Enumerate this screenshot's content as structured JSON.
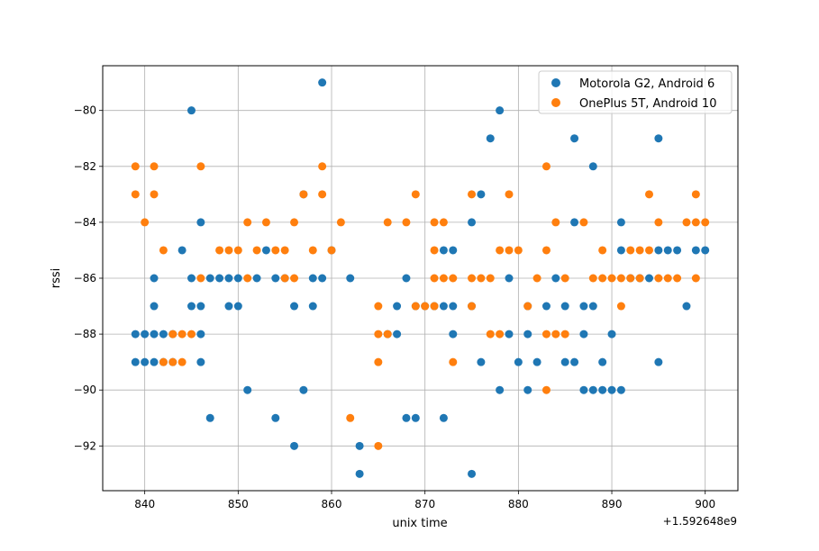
{
  "chart_data": {
    "type": "scatter",
    "title": "",
    "xlabel": "unix time",
    "ylabel": "rssi",
    "x_offset_label": "+1.592648e9",
    "xlim": [
      835.5,
      903.5
    ],
    "ylim": [
      -93.6,
      -78.4
    ],
    "xticks": [
      840,
      850,
      860,
      870,
      880,
      890,
      900
    ],
    "yticks": [
      -92,
      -90,
      -88,
      -86,
      -84,
      -82,
      -80
    ],
    "ytick_labels": [
      "−92",
      "−90",
      "−88",
      "−86",
      "−84",
      "−82",
      "−80"
    ],
    "grid": true,
    "legend_position": "top-right",
    "series": [
      {
        "name": "Motorola G2, Android 6",
        "color": "#1f77b4",
        "points": [
          [
            839,
            -88
          ],
          [
            839,
            -89
          ],
          [
            840,
            -88
          ],
          [
            840,
            -89
          ],
          [
            841,
            -86
          ],
          [
            841,
            -87
          ],
          [
            841,
            -88
          ],
          [
            841,
            -89
          ],
          [
            842,
            -88
          ],
          [
            842,
            -89
          ],
          [
            843,
            -88
          ],
          [
            843,
            -89
          ],
          [
            844,
            -85
          ],
          [
            845,
            -80
          ],
          [
            845,
            -86
          ],
          [
            845,
            -87
          ],
          [
            846,
            -84
          ],
          [
            846,
            -87
          ],
          [
            846,
            -88
          ],
          [
            846,
            -89
          ],
          [
            847,
            -86
          ],
          [
            847,
            -91
          ],
          [
            848,
            -86
          ],
          [
            849,
            -86
          ],
          [
            849,
            -87
          ],
          [
            850,
            -86
          ],
          [
            850,
            -87
          ],
          [
            851,
            -90
          ],
          [
            852,
            -86
          ],
          [
            853,
            -85
          ],
          [
            854,
            -86
          ],
          [
            854,
            -91
          ],
          [
            855,
            -86
          ],
          [
            856,
            -87
          ],
          [
            856,
            -92
          ],
          [
            857,
            -83
          ],
          [
            857,
            -90
          ],
          [
            858,
            -86
          ],
          [
            858,
            -87
          ],
          [
            859,
            -79
          ],
          [
            859,
            -86
          ],
          [
            860,
            -85
          ],
          [
            862,
            -86
          ],
          [
            863,
            -92
          ],
          [
            863,
            -93
          ],
          [
            866,
            -88
          ],
          [
            867,
            -87
          ],
          [
            867,
            -88
          ],
          [
            868,
            -86
          ],
          [
            868,
            -91
          ],
          [
            869,
            -87
          ],
          [
            869,
            -91
          ],
          [
            870,
            -87
          ],
          [
            871,
            -87
          ],
          [
            872,
            -85
          ],
          [
            872,
            -87
          ],
          [
            872,
            -91
          ],
          [
            873,
            -85
          ],
          [
            873,
            -87
          ],
          [
            873,
            -88
          ],
          [
            875,
            -84
          ],
          [
            875,
            -87
          ],
          [
            875,
            -93
          ],
          [
            876,
            -83
          ],
          [
            876,
            -89
          ],
          [
            877,
            -81
          ],
          [
            878,
            -80
          ],
          [
            878,
            -90
          ],
          [
            879,
            -86
          ],
          [
            879,
            -88
          ],
          [
            880,
            -89
          ],
          [
            881,
            -87
          ],
          [
            881,
            -88
          ],
          [
            881,
            -90
          ],
          [
            882,
            -89
          ],
          [
            883,
            -87
          ],
          [
            884,
            -86
          ],
          [
            885,
            -87
          ],
          [
            885,
            -89
          ],
          [
            886,
            -81
          ],
          [
            886,
            -84
          ],
          [
            886,
            -89
          ],
          [
            887,
            -87
          ],
          [
            887,
            -88
          ],
          [
            887,
            -90
          ],
          [
            888,
            -82
          ],
          [
            888,
            -87
          ],
          [
            888,
            -90
          ],
          [
            889,
            -89
          ],
          [
            889,
            -90
          ],
          [
            890,
            -88
          ],
          [
            890,
            -90
          ],
          [
            891,
            -84
          ],
          [
            891,
            -85
          ],
          [
            891,
            -90
          ],
          [
            892,
            -86
          ],
          [
            893,
            -86
          ],
          [
            894,
            -86
          ],
          [
            895,
            -81
          ],
          [
            895,
            -85
          ],
          [
            895,
            -89
          ],
          [
            896,
            -85
          ],
          [
            897,
            -85
          ],
          [
            898,
            -87
          ],
          [
            899,
            -85
          ],
          [
            900,
            -85
          ]
        ]
      },
      {
        "name": "OnePlus 5T, Android 10",
        "color": "#ff7f0e",
        "points": [
          [
            839,
            -82
          ],
          [
            839,
            -83
          ],
          [
            840,
            -84
          ],
          [
            841,
            -82
          ],
          [
            841,
            -83
          ],
          [
            842,
            -85
          ],
          [
            842,
            -89
          ],
          [
            843,
            -88
          ],
          [
            843,
            -89
          ],
          [
            844,
            -88
          ],
          [
            844,
            -89
          ],
          [
            845,
            -88
          ],
          [
            846,
            -82
          ],
          [
            846,
            -86
          ],
          [
            848,
            -85
          ],
          [
            849,
            -85
          ],
          [
            850,
            -85
          ],
          [
            851,
            -84
          ],
          [
            851,
            -86
          ],
          [
            852,
            -85
          ],
          [
            853,
            -84
          ],
          [
            854,
            -85
          ],
          [
            855,
            -85
          ],
          [
            855,
            -86
          ],
          [
            856,
            -84
          ],
          [
            856,
            -86
          ],
          [
            857,
            -83
          ],
          [
            858,
            -85
          ],
          [
            859,
            -82
          ],
          [
            859,
            -83
          ],
          [
            860,
            -85
          ],
          [
            861,
            -84
          ],
          [
            862,
            -91
          ],
          [
            865,
            -87
          ],
          [
            865,
            -88
          ],
          [
            865,
            -89
          ],
          [
            865,
            -92
          ],
          [
            866,
            -84
          ],
          [
            866,
            -88
          ],
          [
            868,
            -84
          ],
          [
            869,
            -83
          ],
          [
            869,
            -87
          ],
          [
            870,
            -87
          ],
          [
            871,
            -84
          ],
          [
            871,
            -85
          ],
          [
            871,
            -86
          ],
          [
            871,
            -87
          ],
          [
            872,
            -84
          ],
          [
            872,
            -86
          ],
          [
            873,
            -86
          ],
          [
            873,
            -89
          ],
          [
            875,
            -83
          ],
          [
            875,
            -86
          ],
          [
            875,
            -87
          ],
          [
            876,
            -86
          ],
          [
            877,
            -86
          ],
          [
            877,
            -88
          ],
          [
            878,
            -85
          ],
          [
            878,
            -88
          ],
          [
            879,
            -83
          ],
          [
            879,
            -85
          ],
          [
            880,
            -85
          ],
          [
            881,
            -87
          ],
          [
            882,
            -86
          ],
          [
            883,
            -82
          ],
          [
            883,
            -85
          ],
          [
            883,
            -88
          ],
          [
            883,
            -90
          ],
          [
            884,
            -84
          ],
          [
            884,
            -88
          ],
          [
            885,
            -86
          ],
          [
            885,
            -88
          ],
          [
            887,
            -84
          ],
          [
            888,
            -86
          ],
          [
            889,
            -85
          ],
          [
            889,
            -86
          ],
          [
            890,
            -86
          ],
          [
            891,
            -86
          ],
          [
            891,
            -87
          ],
          [
            892,
            -85
          ],
          [
            892,
            -86
          ],
          [
            893,
            -85
          ],
          [
            893,
            -86
          ],
          [
            894,
            -83
          ],
          [
            894,
            -85
          ],
          [
            895,
            -84
          ],
          [
            895,
            -86
          ],
          [
            896,
            -86
          ],
          [
            897,
            -86
          ],
          [
            898,
            -84
          ],
          [
            899,
            -83
          ],
          [
            899,
            -84
          ],
          [
            899,
            -86
          ],
          [
            900,
            -84
          ]
        ]
      }
    ]
  }
}
